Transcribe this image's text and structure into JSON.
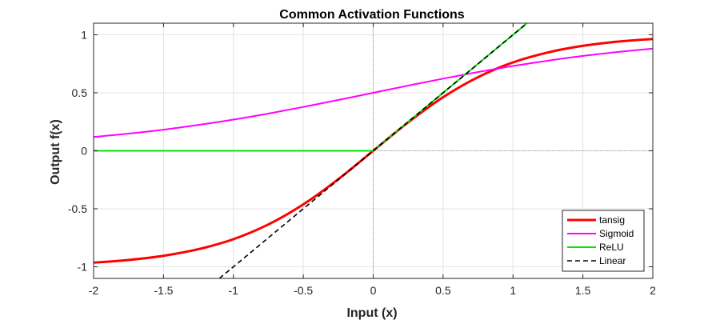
{
  "chart_data": {
    "type": "line",
    "title": "Common Activation Functions",
    "xlabel": "Input (x)",
    "ylabel": "Output f(x)",
    "xlim": [
      -2,
      2
    ],
    "ylim": [
      -1.1,
      1.1
    ],
    "xticks": [
      -2,
      -1.5,
      -1,
      -0.5,
      0,
      0.5,
      1,
      1.5,
      2
    ],
    "xtick_labels": [
      "-2",
      "-1.5",
      "-1",
      "-0.5",
      "0",
      "0.5",
      "1",
      "1.5",
      "2"
    ],
    "yticks": [
      -1,
      -0.5,
      0,
      0.5,
      1
    ],
    "ytick_labels": [
      "-1",
      "-0.5",
      "0",
      "0.5",
      "1"
    ],
    "grid": true,
    "zero_reference_lines": true,
    "legend_position": "bottom-right",
    "series": [
      {
        "name": "tansig",
        "color": "#ff0000",
        "line_style": "solid",
        "x": [
          -2,
          -1.75,
          -1.5,
          -1.25,
          -1,
          -0.75,
          -0.5,
          -0.25,
          0,
          0.25,
          0.5,
          0.75,
          1,
          1.25,
          1.5,
          1.75,
          2
        ],
        "y": [
          -0.964,
          -0.941,
          -0.905,
          -0.848,
          -0.762,
          -0.635,
          -0.462,
          -0.245,
          0,
          0.245,
          0.462,
          0.635,
          0.762,
          0.848,
          0.905,
          0.941,
          0.964
        ]
      },
      {
        "name": "Sigmoid",
        "color": "#ff00ff",
        "line_style": "solid",
        "x": [
          -2,
          -1.75,
          -1.5,
          -1.25,
          -1,
          -0.75,
          -0.5,
          -0.25,
          0,
          0.25,
          0.5,
          0.75,
          1,
          1.25,
          1.5,
          1.75,
          2
        ],
        "y": [
          0.119,
          0.148,
          0.182,
          0.223,
          0.269,
          0.321,
          0.378,
          0.438,
          0.5,
          0.562,
          0.622,
          0.679,
          0.731,
          0.777,
          0.818,
          0.852,
          0.881
        ]
      },
      {
        "name": "ReLU",
        "color": "#00e600",
        "line_style": "solid",
        "x": [
          -2,
          0,
          1.1
        ],
        "y": [
          0,
          0,
          1.1
        ]
      },
      {
        "name": "Linear",
        "color": "#000000",
        "line_style": "dashed",
        "x": [
          -1.1,
          1.1
        ],
        "y": [
          -1.1,
          1.1
        ]
      }
    ]
  }
}
